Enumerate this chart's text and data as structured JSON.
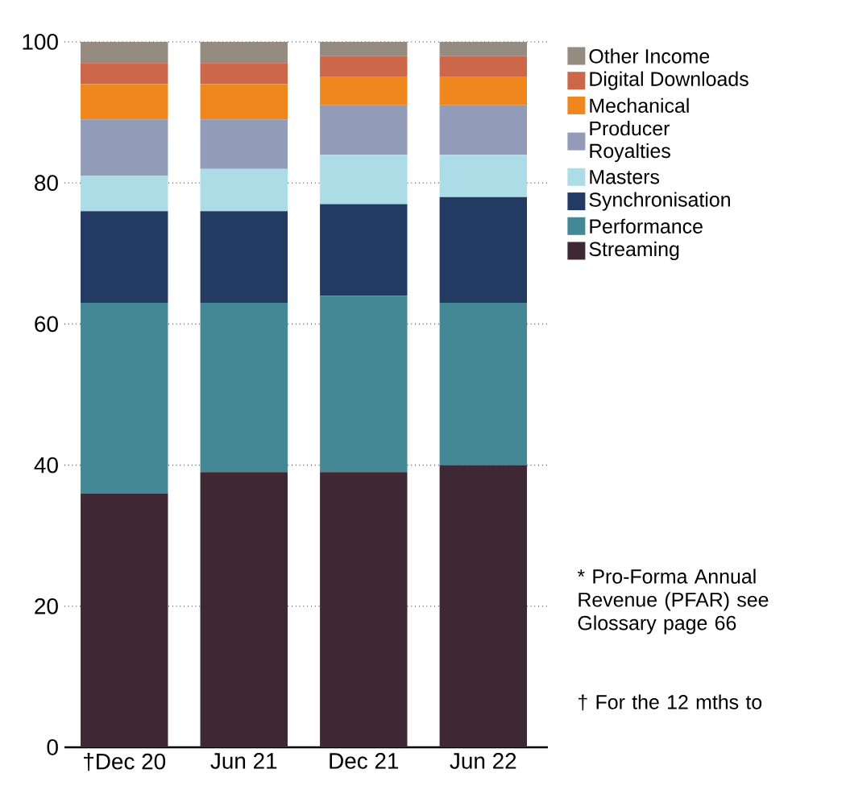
{
  "chart_data": {
    "type": "bar",
    "stacked": true,
    "categories": [
      "†Dec 20",
      "Jun 21",
      "Dec 21",
      "Jun 22"
    ],
    "series": [
      {
        "name": "Streaming",
        "color": "#3d2834",
        "values": [
          36,
          39,
          39,
          40
        ]
      },
      {
        "name": "Performance",
        "color": "#448795",
        "values": [
          27,
          24,
          25,
          23
        ]
      },
      {
        "name": "Synchronisation",
        "color": "#233a63",
        "values": [
          13,
          13,
          13,
          15
        ]
      },
      {
        "name": "Masters",
        "color": "#acdce6",
        "values": [
          5,
          6,
          7,
          6
        ]
      },
      {
        "name": "Producer Royalties",
        "color": "#929bb8",
        "values": [
          8,
          7,
          7,
          7
        ]
      },
      {
        "name": "Mechanical",
        "color": "#f0871e",
        "values": [
          5,
          5,
          4,
          4
        ]
      },
      {
        "name": "Digital Downloads",
        "color": "#cc674a",
        "values": [
          3,
          3,
          3,
          3
        ]
      },
      {
        "name": "Other Income",
        "color": "#968b80",
        "values": [
          3,
          3,
          2,
          2
        ]
      }
    ],
    "ylim": [
      0,
      100
    ],
    "yticks": [
      0,
      20,
      40,
      60,
      80,
      100
    ],
    "grid": "y",
    "legend": "top right",
    "annotations": [
      "* Pro-Forma Annual Revenue (PFAR) see Glossary page 66",
      "† For the 12 mths to"
    ]
  }
}
